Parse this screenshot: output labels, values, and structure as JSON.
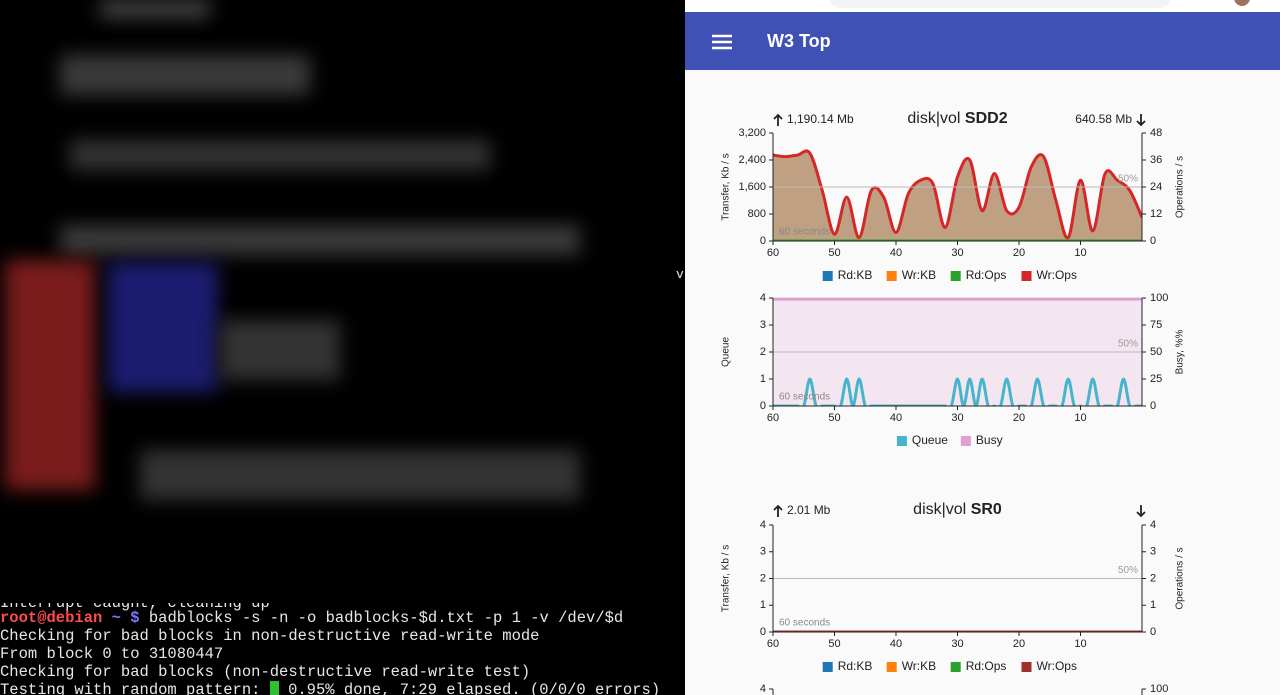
{
  "terminal": {
    "edge_char": "v",
    "interrupt_line": "Interrupt caught, cleaning up",
    "prompt": {
      "user": "root@debian",
      "path": "~ $",
      "command": "badblocks -s -n -o badblocks-$d.txt -p 1 -v /dev/$d"
    },
    "lines": [
      "Checking for bad blocks in non-destructive read-write mode",
      "From block 0 to 31080447",
      "Checking for bad blocks (non-destructive read-write test)"
    ],
    "progress_prefix": "Testing with random pattern:",
    "progress_text": "0.95% done, 7:29 elapsed. (0/0/0 errors)"
  },
  "app": {
    "title": "W3 Top"
  },
  "panels": [
    {
      "read": "1,190.14 Mb",
      "title_prefix": "disk|vol",
      "title": "SDD2",
      "write": "640.58 Mb",
      "charts": [
        {
          "type": "line",
          "ylabel": "Transfer, Kb / s",
          "y2label": "Operations / s",
          "midline_label": "50%",
          "span_label": "60 seconds",
          "xlim": [
            60,
            0
          ],
          "xticks": [
            60,
            50,
            40,
            30,
            20,
            10
          ],
          "ylim": [
            0,
            3200
          ],
          "yticks": [
            0,
            800,
            {
              "value": 1600,
              "label": "1,600"
            },
            {
              "value": 2400,
              "label": "2,400"
            },
            {
              "value": 3200,
              "label": "3,200"
            }
          ],
          "y2lim": [
            0,
            48
          ],
          "y2ticks": [
            0,
            12,
            24,
            36,
            48
          ],
          "x": [
            60,
            58,
            56,
            54,
            52,
            50,
            48,
            46,
            44,
            42,
            40,
            38,
            36,
            34,
            32,
            30,
            28,
            26,
            24,
            22,
            20,
            18,
            16,
            14,
            12,
            10,
            8,
            6,
            4,
            2,
            0
          ],
          "series": [
            {
              "name": "Rd:KB",
              "color": "#1f77b4",
              "values": [
                0,
                0,
                0,
                0,
                0,
                0,
                0,
                0,
                0,
                0,
                0,
                0,
                0,
                0,
                0,
                0,
                0,
                0,
                0,
                0,
                0,
                0,
                0,
                0,
                0,
                0,
                0,
                0,
                0,
                0,
                0
              ]
            },
            {
              "name": "Wr:KB",
              "color": "#ff7f0e",
              "fill": "#bfa083",
              "values": [
                2550,
                2500,
                2550,
                2600,
                1500,
                200,
                1300,
                100,
                1500,
                1300,
                250,
                1400,
                1800,
                1700,
                400,
                1900,
                2400,
                900,
                2000,
                900,
                1000,
                2200,
                2500,
                1200,
                100,
                1800,
                300,
                2000,
                1800,
                1500,
                700
              ]
            },
            {
              "name": "Rd:Ops",
              "color": "#2ca02c",
              "axis": "y2",
              "values": [
                0,
                0,
                0,
                0,
                0,
                0,
                0,
                0,
                0,
                0,
                0,
                0,
                0,
                0,
                0,
                0,
                0,
                0,
                0,
                0,
                0,
                0,
                0,
                0,
                0,
                0,
                0,
                0,
                0,
                0,
                0
              ]
            },
            {
              "name": "Wr:Ops",
              "color": "#d62728",
              "axis": "y2",
              "values": [
                38.2,
                37.5,
                38.2,
                39,
                22.5,
                3,
                19.5,
                1.5,
                22.5,
                19.5,
                3.8,
                21,
                27,
                25.5,
                6,
                28.5,
                36,
                13.5,
                30,
                13.5,
                15,
                33,
                37.5,
                18,
                1.5,
                27,
                4.5,
                30,
                27,
                22.5,
                10.5
              ]
            }
          ]
        },
        {
          "type": "line",
          "ylabel": "Queue",
          "y2label": "Busy, %%",
          "midline_label": "50%",
          "span_label": "60 seconds",
          "xlim": [
            60,
            0
          ],
          "xticks": [
            60,
            50,
            40,
            30,
            20,
            10
          ],
          "ylim": [
            0,
            4
          ],
          "yticks": [
            0,
            1,
            2,
            3,
            4
          ],
          "y2lim": [
            0,
            100
          ],
          "y2ticks": [
            0,
            25,
            50,
            75,
            100
          ],
          "x": [
            60,
            59,
            58,
            57,
            56,
            55,
            54,
            53,
            52,
            51,
            50,
            49,
            48,
            47,
            46,
            45,
            44,
            43,
            42,
            41,
            40,
            39,
            38,
            37,
            36,
            35,
            34,
            33,
            32,
            31,
            30,
            29,
            28,
            27,
            26,
            25,
            24,
            23,
            22,
            21,
            20,
            19,
            18,
            17,
            16,
            15,
            14,
            13,
            12,
            11,
            10,
            9,
            8,
            7,
            6,
            5,
            4,
            3,
            2,
            1,
            0
          ],
          "series": [
            {
              "name": "Busy",
              "color": "#dda0d0",
              "fill": "#f4e6f0",
              "axis": "y2",
              "values": [
                99,
                99,
                99,
                99,
                99,
                99,
                99,
                99,
                99,
                99,
                99,
                99,
                99,
                99,
                99,
                99,
                99,
                99,
                99,
                99,
                99,
                99,
                99,
                99,
                99,
                99,
                99,
                99,
                99,
                99,
                99,
                99,
                99,
                99,
                99,
                99,
                99,
                99,
                99,
                99,
                99,
                99,
                99,
                99,
                99,
                99,
                99,
                99,
                99,
                99,
                99,
                99,
                99,
                99,
                99,
                99,
                99,
                99,
                99,
                99,
                99
              ]
            },
            {
              "name": "Queue",
              "color": "#45b5cc",
              "values": [
                0,
                0,
                0,
                0,
                0,
                0,
                1,
                0,
                0,
                0,
                0,
                0,
                1,
                0,
                1,
                0,
                0,
                0,
                0,
                0,
                0,
                0,
                0,
                0,
                0,
                0,
                0,
                0,
                0,
                0,
                1,
                0,
                1,
                0,
                1,
                0,
                0,
                0,
                1,
                0,
                0,
                0,
                0,
                1,
                0,
                0,
                0,
                0,
                1,
                0,
                0,
                0,
                1,
                0,
                0,
                0,
                0,
                1,
                0,
                0,
                0
              ]
            }
          ],
          "legend_order": [
            "Queue",
            "Busy"
          ]
        }
      ]
    },
    {
      "read": "2.01 Mb",
      "title_prefix": "disk|vol",
      "title": "SR0",
      "charts": [
        {
          "type": "line",
          "ylabel": "Transfer, Kb / s",
          "y2label": "Operations / s",
          "midline_label": "50%",
          "span_label": "60 seconds",
          "xlim": [
            60,
            0
          ],
          "xticks": [
            60,
            50,
            40,
            30,
            20,
            10
          ],
          "ylim": [
            0,
            4
          ],
          "yticks": [
            0,
            1,
            2,
            3,
            4
          ],
          "y2lim": [
            0,
            4
          ],
          "y2ticks": [
            0,
            1,
            2,
            3,
            4
          ],
          "x": [
            60,
            50,
            40,
            30,
            20,
            10,
            0
          ],
          "series": [
            {
              "name": "Rd:KB",
              "color": "#1f77b4",
              "values": [
                0,
                0,
                0,
                0,
                0,
                0,
                0
              ]
            },
            {
              "name": "Wr:KB",
              "color": "#ff7f0e",
              "values": [
                0,
                0,
                0,
                0,
                0,
                0,
                0
              ]
            },
            {
              "name": "Rd:Ops",
              "color": "#2ca02c",
              "axis": "y2",
              "values": [
                0,
                0,
                0,
                0,
                0,
                0,
                0
              ]
            },
            {
              "name": "Wr:Ops",
              "color": "#a0302a",
              "axis": "y2",
              "values": [
                0,
                0,
                0,
                0,
                0,
                0,
                0
              ]
            }
          ]
        }
      ],
      "next_chart": {
        "yticks": [
          4
        ],
        "y2ticks": [
          100
        ]
      }
    }
  ]
}
